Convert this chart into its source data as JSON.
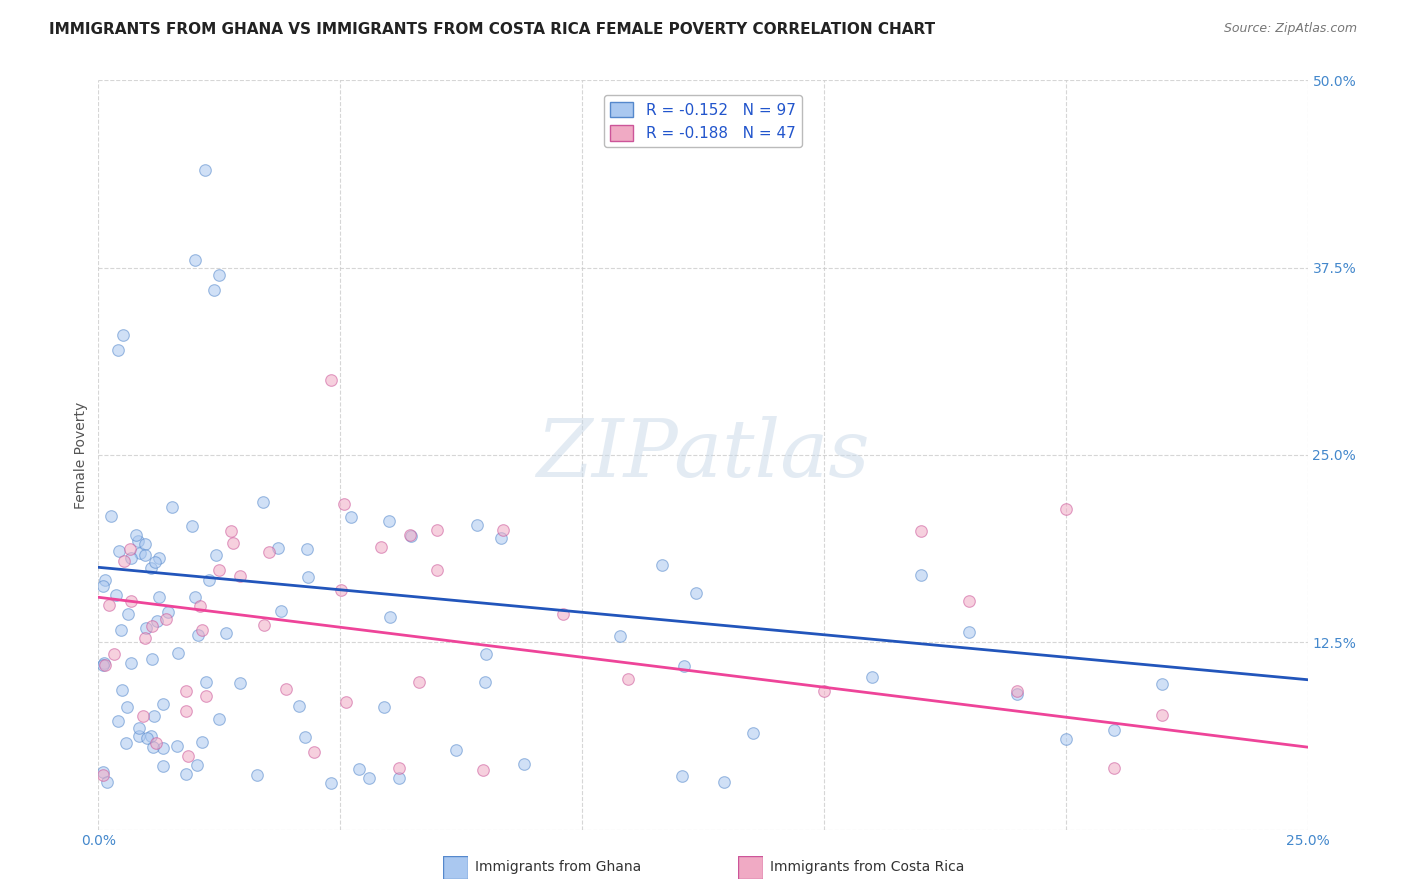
{
  "title": "IMMIGRANTS FROM GHANA VS IMMIGRANTS FROM COSTA RICA FEMALE POVERTY CORRELATION CHART",
  "source": "Source: ZipAtlas.com",
  "ylabel": "Female Poverty",
  "xlim": [
    0.0,
    0.25
  ],
  "ylim": [
    0.0,
    0.5
  ],
  "ghana_color": "#aac8f0",
  "costa_rica_color": "#f0aac4",
  "ghana_edge_color": "#5588cc",
  "costa_rica_edge_color": "#cc5599",
  "ghana_line_color": "#2255bb",
  "costa_rica_line_color": "#ee4499",
  "ghana_R": -0.152,
  "ghana_N": 97,
  "costa_rica_R": -0.188,
  "costa_rica_N": 47,
  "legend_label_1": "Immigrants from Ghana",
  "legend_label_2": "Immigrants from Costa Rica",
  "watermark": "ZIPatlas",
  "background_color": "#ffffff",
  "grid_color": "#cccccc",
  "title_fontsize": 11,
  "axis_label_fontsize": 10,
  "tick_fontsize": 10,
  "legend_fontsize": 11,
  "marker_size": 70,
  "marker_alpha": 0.55,
  "line_width": 2.0
}
